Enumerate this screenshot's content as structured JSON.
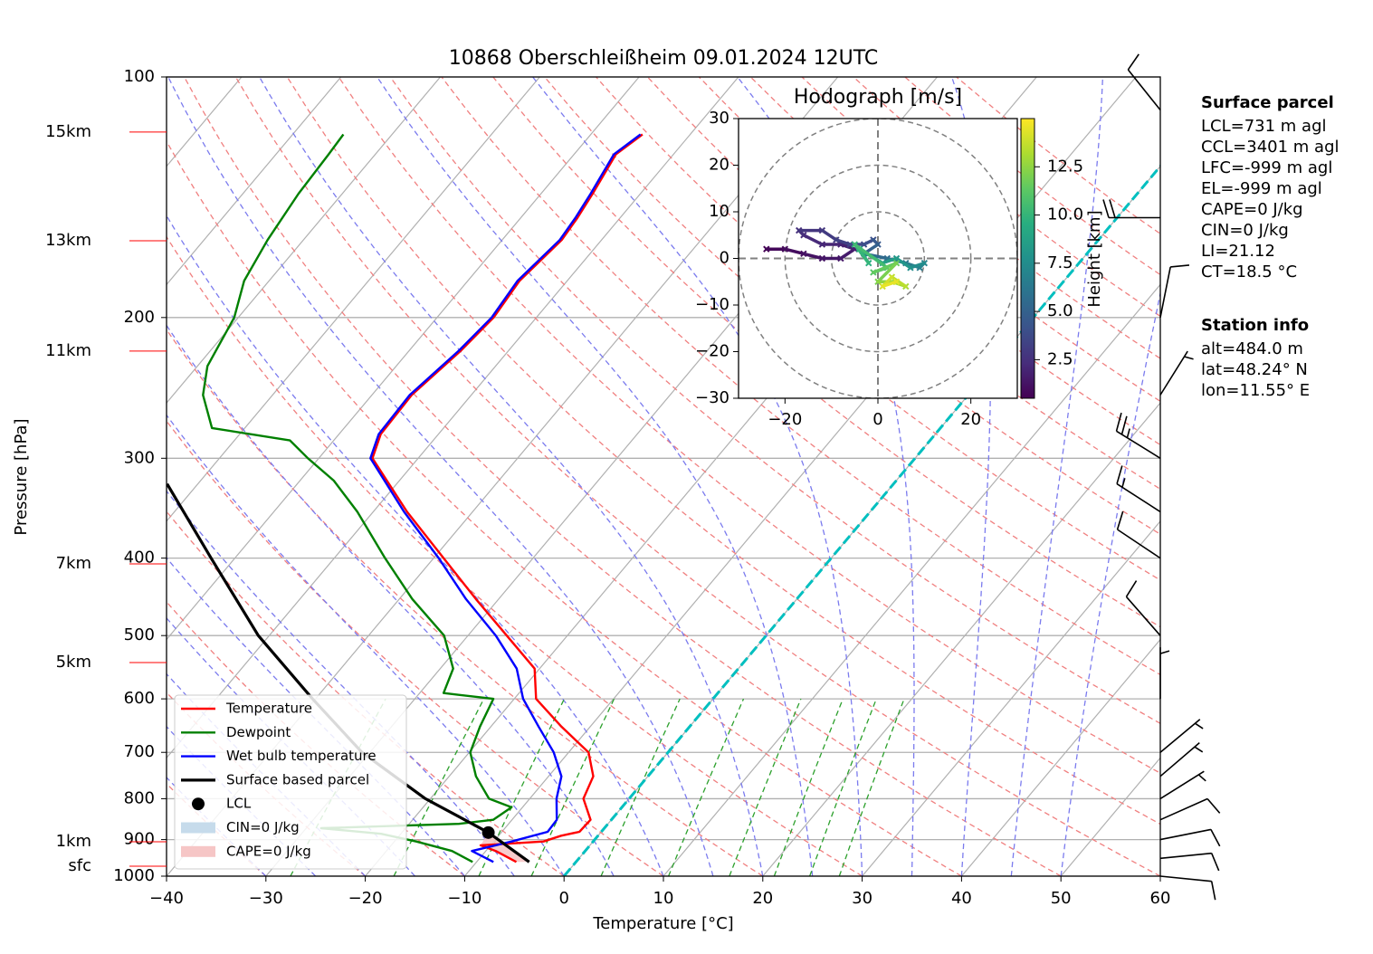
{
  "chart_data": {
    "type": "skewt",
    "title": "10868 Oberschleißheim 09.01.2024 12UTC",
    "xlabel": "Temperature [°C]",
    "ylabel": "Pressure [hPa]",
    "xlim": [
      -40,
      60
    ],
    "xticks": [
      {
        "value": -40,
        "label": "−40"
      },
      {
        "value": -30,
        "label": "−30"
      },
      {
        "value": -20,
        "label": "−20"
      },
      {
        "value": -10,
        "label": "−10"
      },
      0,
      10,
      20,
      30,
      40,
      50,
      60
    ],
    "ylim": [
      1000,
      100
    ],
    "yscale": "log",
    "yticks": [
      100,
      200,
      300,
      400,
      500,
      600,
      700,
      800,
      900,
      1000
    ],
    "grid": true,
    "zero_isotherm": {
      "value": 0,
      "color": "#00bfbf"
    },
    "height_labels": [
      {
        "label": "15km",
        "pressure": 117.2
      },
      {
        "label": "13km",
        "pressure": 160.3
      },
      {
        "label": "11km",
        "pressure": 220.3
      },
      {
        "label": "7km",
        "pressure": 406.7
      },
      {
        "label": "5km",
        "pressure": 540.4
      },
      {
        "label": "1km",
        "pressure": 905.7
      },
      {
        "label": "sfc",
        "pressure": 971.6
      }
    ],
    "series": [
      {
        "name": "Temperature",
        "color": "#ff0000",
        "pressure": [
          960,
          930,
          915,
          905,
          890,
          880,
          850,
          800,
          750,
          700,
          650,
          600,
          550,
          500,
          450,
          400,
          350,
          300,
          280,
          250,
          220,
          200,
          180,
          160,
          150,
          140,
          125,
          118
        ],
        "values": [
          -6.0,
          -9.0,
          -11.0,
          -5.0,
          -3.7,
          -2.2,
          -2.1,
          -4.6,
          -5.5,
          -8.0,
          -12.9,
          -17.8,
          -20.5,
          -26.1,
          -32.3,
          -39.0,
          -46.6,
          -54.6,
          -55.8,
          -56.0,
          -54.8,
          -54.3,
          -54.8,
          -54.0,
          -54.3,
          -54.8,
          -55.8,
          -54.8
        ]
      },
      {
        "name": "Dewpoint",
        "color": "#008000",
        "pressure": [
          960,
          930,
          905,
          885,
          871,
          860,
          850,
          820,
          800,
          750,
          700,
          650,
          600,
          590,
          550,
          500,
          450,
          400,
          350,
          320,
          300,
          285,
          275,
          250,
          230,
          200,
          180,
          160,
          140,
          125,
          118
        ],
        "values": [
          -10.4,
          -13.4,
          -17.8,
          -22.0,
          -28.5,
          -15.0,
          -11.9,
          -11.1,
          -14.1,
          -17.3,
          -19.9,
          -21.1,
          -22.1,
          -27.6,
          -28.7,
          -32.4,
          -38.7,
          -44.9,
          -51.6,
          -56.6,
          -61.1,
          -64.4,
          -73.3,
          -77.0,
          -79.0,
          -80.4,
          -82.5,
          -83.6,
          -84.4,
          -84.7,
          -84.9
        ]
      },
      {
        "name": "Wet bulb temperature",
        "color": "#0000ff",
        "pressure": [
          960,
          930,
          905,
          880,
          850,
          800,
          750,
          700,
          650,
          600,
          550,
          500,
          450,
          400,
          350,
          300,
          280,
          250,
          220,
          200,
          180,
          160,
          150,
          140,
          125,
          118
        ],
        "values": [
          -8.3,
          -11.4,
          -8.2,
          -5.4,
          -5.5,
          -7.3,
          -8.7,
          -11.5,
          -15.2,
          -19.1,
          -22.3,
          -27.2,
          -33.3,
          -39.5,
          -46.9,
          -54.8,
          -56.0,
          -56.2,
          -55.0,
          -54.5,
          -55.0,
          -54.2,
          -54.5,
          -55.0,
          -56.0,
          -55.0
        ]
      },
      {
        "name": "Surface based parcel",
        "color": "#000000",
        "pressure": [
          960,
          882,
          800,
          700,
          600,
          500,
          400,
          323
        ],
        "values": [
          -4.7,
          -11.3,
          -20.5,
          -30.8,
          -40.3,
          -51.1,
          -62.4,
          -73.1
        ]
      }
    ],
    "lcl": {
      "name": "LCL",
      "pressure": 882,
      "temperature": -11.3,
      "color": "#000000"
    },
    "cin": {
      "name": "CIN=0 J/kg",
      "color": "#c6dbeb"
    },
    "cape": {
      "name": "CAPE=0 J/kg",
      "color": "#f6c6c6"
    },
    "legend": "lower left",
    "wind_barbs": {
      "pressure": [
        1000,
        950,
        900,
        850,
        800,
        750,
        700,
        600,
        500,
        400,
        350,
        300,
        250,
        200,
        150,
        110
      ],
      "u": [
        -10,
        -10,
        -10,
        -9,
        -8,
        -7,
        -6,
        0,
        7,
        12,
        14,
        21,
        -5,
        -2,
        20,
        8
      ],
      "v": [
        1,
        -1,
        -2,
        -4,
        -5,
        -6,
        -5,
        -8,
        -8,
        -8,
        -9,
        -13,
        -8,
        -10,
        0,
        -10
      ]
    },
    "parcel_info": {
      "title": "Surface parcel",
      "lines": [
        "LCL=731 m agl",
        "CCL=3401 m agl",
        "LFC=-999 m agl",
        "EL=-999 m agl",
        "CAPE=0 J/kg",
        "CIN=0 J/kg",
        "LI=21.12",
        "CT=18.5 °C"
      ]
    },
    "station_info": {
      "title": "Station info",
      "lines": [
        "alt=484.0 m",
        "lat=48.24° N",
        "lon=11.55° E"
      ]
    },
    "hodograph": {
      "title": "Hodograph [m/s]",
      "xlim": [
        -30,
        30
      ],
      "ylim": [
        -30,
        30
      ],
      "xticks": [
        {
          "value": -20,
          "label": "−20"
        },
        0,
        20
      ],
      "yticks": [
        {
          "value": -30,
          "label": "−30"
        },
        {
          "value": -20,
          "label": "−20"
        },
        {
          "value": -10,
          "label": "−10"
        },
        0,
        10,
        20,
        30
      ],
      "rings": [
        10,
        20,
        30
      ],
      "u": [
        -24,
        -20,
        -16,
        -12,
        -8,
        -5,
        -8,
        -12,
        -16,
        -17,
        -12,
        -9,
        -6,
        -3,
        -1,
        0,
        -3,
        2,
        6,
        9,
        10,
        7,
        4,
        1,
        -4,
        -2,
        -5,
        2,
        -1,
        4,
        0,
        3,
        6,
        3,
        1,
        4
      ],
      "v": [
        2,
        2,
        1,
        0,
        0,
        2,
        3,
        3,
        5,
        6,
        6,
        4,
        3,
        3,
        4,
        3,
        1,
        0,
        -1,
        -2,
        -1,
        -2,
        0,
        -1,
        2,
        -1,
        3,
        -2,
        -3,
        -1,
        -5,
        -5,
        -6,
        -4,
        -6,
        -5
      ],
      "height": [
        0.5,
        0.8,
        1.0,
        1.2,
        1.4,
        1.6,
        1.8,
        2.0,
        2.2,
        2.4,
        2.7,
        3.0,
        3.3,
        3.7,
        4.0,
        4.5,
        5.0,
        5.5,
        6.0,
        6.5,
        7.0,
        7.5,
        8.0,
        8.5,
        9.0,
        9.5,
        10.0,
        10.5,
        11.0,
        11.5,
        12.0,
        12.5,
        13.0,
        13.5,
        14.0,
        14.5
      ],
      "colorbar": {
        "label": "Height [km]",
        "lim": [
          0.5,
          15.0
        ],
        "ticks": [
          2.5,
          {
            "value": 5,
            "label": "5.0"
          },
          7.5,
          {
            "value": 10,
            "label": "10.0"
          },
          12.5
        ]
      }
    }
  }
}
